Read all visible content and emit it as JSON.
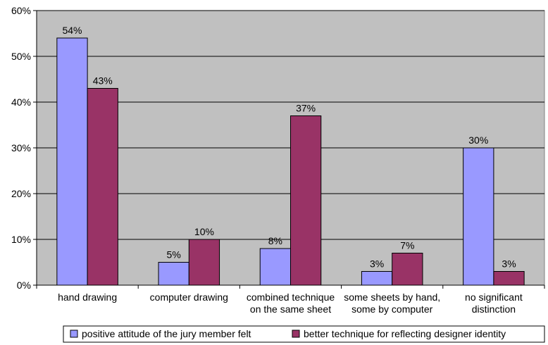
{
  "chart_data": {
    "type": "bar",
    "categories": [
      [
        "hand drawing"
      ],
      [
        "computer drawing"
      ],
      [
        "combined technique",
        "on the same sheet"
      ],
      [
        "some sheets by hand,",
        "some by computer"
      ],
      [
        "no significant",
        "distinction"
      ]
    ],
    "series": [
      {
        "name": "positive attitude of the jury member felt",
        "color": "#9999ff",
        "values": [
          54,
          5,
          8,
          3,
          30
        ],
        "labels": [
          "54%",
          "5%",
          "8%",
          "3%",
          "30%"
        ]
      },
      {
        "name": "better technique for reflecting designer identity",
        "color": "#993366",
        "values": [
          43,
          10,
          37,
          7,
          3
        ],
        "labels": [
          "43%",
          "10%",
          "37%",
          "7%",
          "3%"
        ]
      }
    ],
    "ylim": [
      0,
      60
    ],
    "yticks": [
      0,
      10,
      20,
      30,
      40,
      50,
      60
    ],
    "ytick_labels": [
      "0%",
      "10%",
      "20%",
      "30%",
      "40%",
      "50%",
      "60%"
    ],
    "plot_background": "#c0c0c0",
    "grid": true,
    "legend_position": "bottom"
  }
}
